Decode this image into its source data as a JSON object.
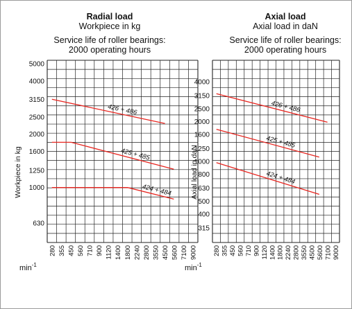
{
  "charts": [
    {
      "id": "radial",
      "title": "Radial load",
      "subtitle": "Workpiece in kg",
      "note_line1": "Service life of roller bearings:",
      "note_line2": "2000 operating hours"
    },
    {
      "id": "axial",
      "title": "Axial load",
      "subtitle": "Axial load in daN",
      "note_line1": "Service life of roller bearings:",
      "note_line2": "2000 operating hours"
    }
  ],
  "line_color": "#e8251f",
  "grid_color": "#222222",
  "chart_data": [
    {
      "type": "line",
      "title": "Radial load",
      "subtitle": "Workpiece in kg",
      "xlabel": "min-1",
      "ylabel": "Workpiece in kg",
      "x_scale": "log",
      "y_scale": "log",
      "x_ticks": [
        280,
        355,
        450,
        560,
        710,
        900,
        1120,
        1400,
        1800,
        2240,
        2800,
        3550,
        4500,
        5600,
        7100,
        9000
      ],
      "y_ticks": [
        630,
        1000,
        1250,
        1600,
        2000,
        2500,
        3150,
        4000,
        5000
      ],
      "grid": true,
      "series": [
        {
          "name": "426 + 486",
          "x": [
            280,
            4500
          ],
          "y": [
            3150,
            2300
          ]
        },
        {
          "name": "425 + 485",
          "x": [
            280,
            450,
            5600
          ],
          "y": [
            1800,
            1800,
            1270
          ]
        },
        {
          "name": "424 + 484",
          "x": [
            280,
            1800,
            5600
          ],
          "y": [
            1000,
            1000,
            860
          ]
        }
      ]
    },
    {
      "type": "line",
      "title": "Axial load",
      "subtitle": "Axial load in daN",
      "xlabel": "min-1",
      "ylabel": "Axial load in daN",
      "x_scale": "log",
      "y_scale": "log",
      "x_ticks": [
        280,
        355,
        450,
        560,
        710,
        900,
        1120,
        1400,
        1800,
        2240,
        2800,
        3550,
        4500,
        5600,
        7100,
        9000
      ],
      "y_ticks": [
        315,
        400,
        500,
        630,
        800,
        1000,
        1250,
        1600,
        2000,
        2500,
        3150,
        4000
      ],
      "grid": true,
      "series": [
        {
          "name": "426 + 486",
          "x": [
            280,
            7100
          ],
          "y": [
            3250,
            1980
          ]
        },
        {
          "name": "425 + 485",
          "x": [
            280,
            5600
          ],
          "y": [
            1750,
            1080
          ]
        },
        {
          "name": "424 + 484",
          "x": [
            280,
            5600
          ],
          "y": [
            980,
            565
          ]
        }
      ]
    }
  ]
}
